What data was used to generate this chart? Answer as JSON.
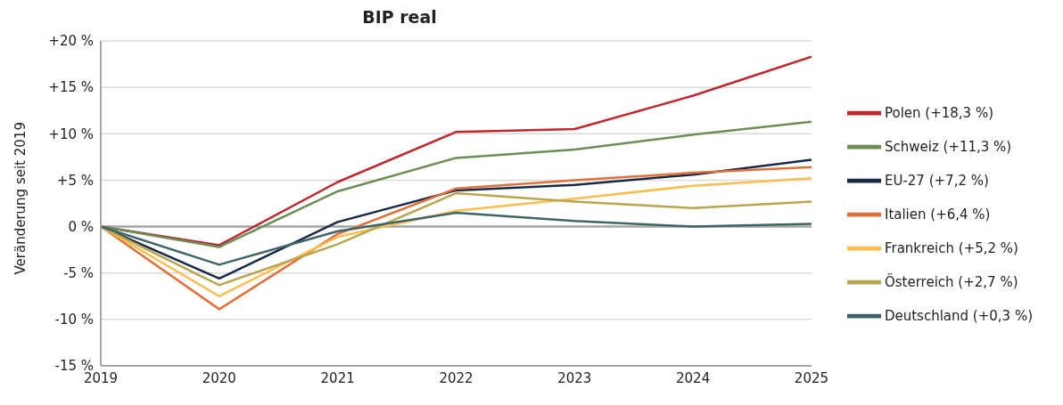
{
  "chart_data": {
    "type": "line",
    "title": "BIP real",
    "ylabel": "Veränderung seit 2019",
    "x": [
      2019,
      2020,
      2021,
      2022,
      2023,
      2024,
      2025
    ],
    "xlim": [
      2019,
      2025
    ],
    "xticks": [
      2019,
      2020,
      2021,
      2022,
      2023,
      2024,
      2025
    ],
    "ylim": [
      -15,
      20
    ],
    "yticks": [
      {
        "value": -15,
        "label": "-15 %"
      },
      {
        "value": -10,
        "label": "-10 %"
      },
      {
        "value": -5,
        "label": "-5 %"
      },
      {
        "value": 0,
        "label": "0 %"
      },
      {
        "value": 5,
        "label": "+5 %"
      },
      {
        "value": 10,
        "label": "+10 %"
      },
      {
        "value": 15,
        "label": "+15 %"
      },
      {
        "value": 20,
        "label": "+20 %"
      }
    ],
    "grid": "y",
    "legend": "right",
    "marker": "none",
    "line_style": "solid",
    "ref_lines": [
      {
        "axis": "y",
        "value": 0,
        "color": "#a6a6a6"
      }
    ],
    "series": [
      {
        "name": "Polen (+18,3 %)",
        "color": "#c0282d",
        "values": [
          0,
          -2.0,
          4.8,
          10.2,
          10.5,
          14.1,
          18.3
        ]
      },
      {
        "name": "Schweiz (+11,3 %)",
        "color": "#6a8f55",
        "values": [
          0,
          -2.2,
          3.8,
          7.4,
          8.3,
          9.9,
          11.3
        ]
      },
      {
        "name": "EU-27 (+7,2 %)",
        "color": "#172a45",
        "values": [
          0,
          -5.6,
          0.5,
          3.9,
          4.5,
          5.6,
          7.2
        ]
      },
      {
        "name": "Italien (+6,4 %)",
        "color": "#e0703a",
        "values": [
          0,
          -8.9,
          -0.8,
          4.1,
          5.0,
          5.8,
          6.4
        ]
      },
      {
        "name": "Frankreich (+5,2 %)",
        "color": "#fbbd4e",
        "values": [
          0,
          -7.5,
          -1.1,
          1.7,
          3.0,
          4.4,
          5.2
        ]
      },
      {
        "name": "Österreich (+2,7 %)",
        "color": "#b9a550",
        "values": [
          0,
          -6.3,
          -1.9,
          3.6,
          2.7,
          2.0,
          2.7
        ]
      },
      {
        "name": "Deutschland (+0,3 %)",
        "color": "#3f6468",
        "values": [
          0,
          -4.1,
          -0.5,
          1.5,
          0.6,
          0.0,
          0.3
        ]
      }
    ]
  }
}
